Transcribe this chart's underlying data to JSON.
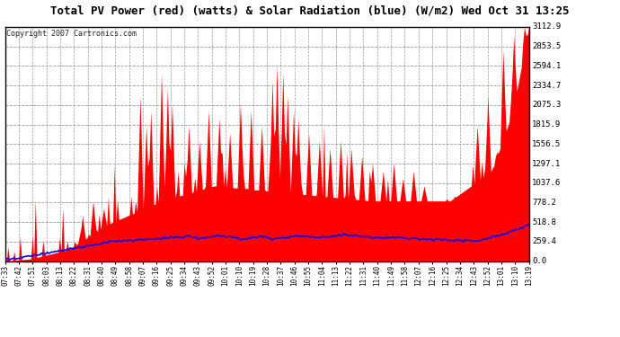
{
  "title": "Total PV Power (red) (watts) & Solar Radiation (blue) (W/m2) Wed Oct 31 13:25",
  "copyright": "Copyright 2007 Cartronics.com",
  "y_max": 3112.9,
  "y_ticks": [
    0.0,
    259.4,
    518.8,
    778.2,
    1037.6,
    1297.1,
    1556.5,
    1815.9,
    2075.3,
    2334.7,
    2594.1,
    2853.5,
    3112.9
  ],
  "x_labels": [
    "07:33",
    "07:42",
    "07:51",
    "08:03",
    "08:13",
    "08:22",
    "08:31",
    "08:40",
    "08:49",
    "08:58",
    "09:07",
    "09:16",
    "09:25",
    "09:34",
    "09:43",
    "09:52",
    "10:01",
    "10:10",
    "10:19",
    "10:28",
    "10:37",
    "10:46",
    "10:55",
    "11:04",
    "11:13",
    "11:22",
    "11:31",
    "11:40",
    "11:49",
    "11:58",
    "12:07",
    "12:16",
    "12:25",
    "12:34",
    "12:43",
    "12:52",
    "13:01",
    "13:10",
    "13:19"
  ],
  "background_color": "#ffffff",
  "plot_bg_color": "#ffffff",
  "grid_color": "#aaaaaa",
  "title_color": "#000000",
  "red_fill_color": "#ff0000",
  "blue_line_color": "#0000ff",
  "border_color": "#000000",
  "n_xlabels": 39,
  "figwidth": 6.9,
  "figheight": 3.75,
  "dpi": 100
}
